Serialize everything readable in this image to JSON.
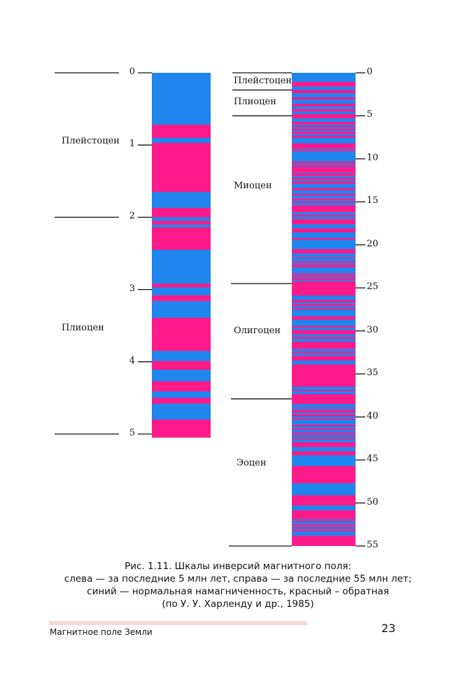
{
  "colors": {
    "normal": "#1e86ec",
    "reversed": "#ff1a8a"
  },
  "left_scale": {
    "unit_max": 5,
    "ticks": [
      "0",
      "1",
      "2",
      "3",
      "4",
      "5"
    ],
    "epoch_boundaries": [
      0,
      2,
      5
    ],
    "epochs": [
      {
        "label": "Плейстоцен"
      },
      {
        "label": "Плиоцен"
      }
    ],
    "reversed_intervals": [
      [
        0.72,
        0.9
      ],
      [
        0.97,
        1.65
      ],
      [
        1.87,
        2.0
      ],
      [
        2.05,
        2.1
      ],
      [
        2.14,
        2.45
      ],
      [
        2.92,
        2.97
      ],
      [
        3.08,
        3.16
      ],
      [
        3.39,
        3.85
      ],
      [
        3.99,
        4.11
      ],
      [
        4.27,
        4.41
      ],
      [
        4.5,
        4.58
      ],
      [
        4.8,
        5.05
      ]
    ],
    "end": 5.05
  },
  "right_scale": {
    "unit_max": 55,
    "ticks": [
      "0",
      "5",
      "10",
      "15",
      "20",
      "25",
      "30",
      "35",
      "40",
      "45",
      "50",
      "55"
    ],
    "epoch_boundaries": [
      0,
      2,
      5,
      24.5,
      37.9,
      55
    ],
    "epochs": [
      {
        "label": "Плейстоцен"
      },
      {
        "label": "Плиоцен"
      },
      {
        "label": "Миоцен"
      },
      {
        "label": "Олигоцен"
      },
      {
        "label": "Эоцен"
      }
    ],
    "reversed_intervals": [
      [
        1.06,
        1.6
      ],
      [
        2.0,
        2.35
      ],
      [
        2.85,
        3.1
      ],
      [
        3.6,
        3.9
      ],
      [
        4.1,
        4.2
      ],
      [
        4.3,
        4.5
      ],
      [
        4.8,
        5.3
      ],
      [
        5.7,
        5.95
      ],
      [
        6.1,
        6.3
      ],
      [
        6.5,
        6.7
      ],
      [
        6.85,
        7.1
      ],
      [
        7.3,
        7.55
      ],
      [
        8.2,
        8.8
      ],
      [
        8.9,
        9.1
      ],
      [
        10.3,
        10.5
      ],
      [
        10.65,
        10.8
      ],
      [
        10.9,
        11.6
      ],
      [
        11.7,
        12.0
      ],
      [
        12.2,
        12.4
      ],
      [
        12.6,
        12.9
      ],
      [
        13.4,
        13.65
      ],
      [
        14.05,
        14.25
      ],
      [
        14.6,
        14.8
      ],
      [
        14.95,
        15.1
      ],
      [
        15.4,
        16.2
      ],
      [
        16.5,
        16.7
      ],
      [
        17.0,
        17.6
      ],
      [
        18.1,
        18.55
      ],
      [
        19.2,
        19.4
      ],
      [
        20.5,
        21.0
      ],
      [
        21.4,
        21.5
      ],
      [
        21.9,
        22.1
      ],
      [
        22.3,
        22.6
      ],
      [
        23.3,
        23.4
      ],
      [
        23.5,
        23.75
      ],
      [
        23.9,
        24.1
      ],
      [
        24.25,
        25.9
      ],
      [
        26.4,
        26.7
      ],
      [
        26.9,
        27.1
      ],
      [
        27.3,
        27.5
      ],
      [
        28.3,
        28.7
      ],
      [
        29.4,
        29.6
      ],
      [
        29.9,
        30.4
      ],
      [
        30.7,
        30.9
      ],
      [
        31.25,
        32.1
      ],
      [
        32.4,
        32.6
      ],
      [
        32.9,
        33.45
      ],
      [
        33.9,
        36.5
      ],
      [
        36.85,
        37.0
      ],
      [
        37.35,
        38.5
      ],
      [
        38.9,
        39.0
      ],
      [
        39.2,
        39.5
      ],
      [
        39.7,
        39.95
      ],
      [
        40.2,
        40.35
      ],
      [
        40.9,
        41.1
      ],
      [
        41.35,
        41.5
      ],
      [
        41.75,
        41.9
      ],
      [
        42.1,
        42.25
      ],
      [
        42.45,
        42.6
      ],
      [
        42.95,
        43.5
      ],
      [
        44.0,
        44.45
      ],
      [
        45.7,
        47.7
      ],
      [
        49.1,
        50.3
      ],
      [
        50.85,
        51.9
      ],
      [
        52.1,
        52.25
      ],
      [
        52.5,
        52.65
      ],
      [
        52.8,
        53.0
      ],
      [
        53.15,
        53.3
      ],
      [
        53.8,
        55
      ]
    ],
    "end": 55
  },
  "caption": {
    "line1": "Рис. 1.11. Шкалы инверсий магнитного поля:",
    "line2": "слева — за последние 5 млн лет, справа — за последние 55 млн лет;",
    "line3": "синий — нормальная намагниченность, красный – обратная",
    "line4": "(по У. У. Харленду и др., 1985)"
  },
  "footer": {
    "running_title": "Магнитное поле Земли",
    "page_number": "23"
  }
}
